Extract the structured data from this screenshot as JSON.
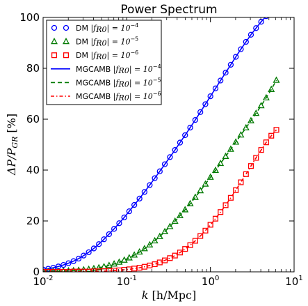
{
  "chart_data": {
    "type": "line",
    "title": "Power Spectrum",
    "xlabel_parts": {
      "var": "k",
      "unit": "[h/Mpc]"
    },
    "ylabel_parts": {
      "var": "ΔP/P",
      "sub": "GR",
      "unit": "[%]"
    },
    "xscale": "log",
    "xlim": [
      0.01,
      10
    ],
    "ylim": [
      0,
      100
    ],
    "x_ticks": [
      {
        "value": 0.01,
        "base": "10",
        "exp": "-2"
      },
      {
        "value": 0.1,
        "base": "10",
        "exp": "-1"
      },
      {
        "value": 1,
        "base": "10",
        "exp": "0"
      },
      {
        "value": 10,
        "base": "10",
        "exp": "1"
      }
    ],
    "y_ticks": [
      0,
      20,
      40,
      60,
      80,
      100
    ],
    "legend_position": "top-left",
    "series": [
      {
        "name": "DM",
        "label_math": "|f",
        "label_sub": "R0",
        "label_exp_pre": "| = 10",
        "label_exp": "−4",
        "kind": "marker",
        "marker": "circle",
        "color": "#0000ff",
        "key": "s4"
      },
      {
        "name": "DM",
        "label_math": "|f",
        "label_sub": "R0",
        "label_exp_pre": "| = 10",
        "label_exp": "−5",
        "kind": "marker",
        "marker": "triangle",
        "color": "#007a00",
        "key": "s5"
      },
      {
        "name": "DM",
        "label_math": "|f",
        "label_sub": "R0",
        "label_exp_pre": "| = 10",
        "label_exp": "−6",
        "kind": "marker",
        "marker": "square",
        "color": "#ff0000",
        "key": "s6"
      },
      {
        "name": "MGCAMB",
        "label_math": "|f",
        "label_sub": "R0",
        "label_exp_pre": "| = 10",
        "label_exp": "−4",
        "kind": "line",
        "dash": "solid",
        "color": "#0000ff",
        "key": "s4"
      },
      {
        "name": "MGCAMB",
        "label_math": "|f",
        "label_sub": "R0",
        "label_exp_pre": "| = 10",
        "label_exp": "−5",
        "kind": "line",
        "dash": "dashed",
        "color": "#007a00",
        "key": "s5"
      },
      {
        "name": "MGCAMB",
        "label_math": "|f",
        "label_sub": "R0",
        "label_exp_pre": "| = 10",
        "label_exp": "−6",
        "kind": "line",
        "dash": "dashdot",
        "color": "#ff0000",
        "key": "s6"
      }
    ],
    "curves": {
      "s4": {
        "x": [
          0.01,
          0.0115,
          0.0132,
          0.0152,
          0.0175,
          0.0201,
          0.0231,
          0.0266,
          0.0305,
          0.0351,
          0.0404,
          0.0464,
          0.0534,
          0.0614,
          0.0706,
          0.0812,
          0.0933,
          0.107,
          0.123,
          0.142,
          0.163,
          0.188,
          0.216,
          0.248,
          0.285,
          0.328,
          0.377,
          0.433,
          0.498,
          0.573,
          0.659,
          0.758,
          0.871,
          1.0,
          1.15,
          1.32,
          1.52,
          1.75,
          2.01,
          2.31,
          2.66,
          3.05,
          3.51,
          4.04,
          4.64,
          5.34,
          6.14
        ],
        "y": [
          0.9,
          1.2,
          1.6,
          2.1,
          2.7,
          3.4,
          4.2,
          5.2,
          6.4,
          7.7,
          9.2,
          10.9,
          12.8,
          14.8,
          16.9,
          19.1,
          21.4,
          23.8,
          26.3,
          28.8,
          31.4,
          34.1,
          36.8,
          39.5,
          42.3,
          45.1,
          47.9,
          50.8,
          53.7,
          56.7,
          59.7,
          62.8,
          65.9,
          69.0,
          72.1,
          75.2,
          78.3,
          81.4,
          84.5,
          87.5,
          90.4,
          93.2,
          95.8,
          98.3,
          100.5,
          102.5,
          104.3
        ]
      },
      "s5": {
        "x": [
          0.01,
          0.0115,
          0.0132,
          0.0152,
          0.0175,
          0.0201,
          0.0231,
          0.0266,
          0.0305,
          0.0351,
          0.0404,
          0.0464,
          0.0534,
          0.0614,
          0.0706,
          0.0812,
          0.0933,
          0.107,
          0.123,
          0.142,
          0.163,
          0.188,
          0.216,
          0.248,
          0.285,
          0.328,
          0.377,
          0.433,
          0.498,
          0.573,
          0.659,
          0.758,
          0.871,
          1.0,
          1.15,
          1.32,
          1.52,
          1.75,
          2.01,
          2.31,
          2.66,
          3.05,
          3.51,
          4.04,
          4.64,
          5.34,
          6.14
        ],
        "y": [
          0.1,
          0.1,
          0.2,
          0.2,
          0.3,
          0.4,
          0.5,
          0.6,
          0.8,
          1.0,
          1.3,
          1.6,
          2.0,
          2.5,
          3.1,
          3.8,
          4.6,
          5.5,
          6.6,
          7.8,
          9.1,
          10.6,
          12.2,
          13.9,
          15.8,
          17.8,
          19.9,
          22.1,
          24.4,
          26.8,
          29.3,
          31.9,
          34.5,
          37.2,
          39.9,
          42.6,
          45.4,
          48.2,
          51.0,
          53.8,
          56.6,
          59.4,
          62.3,
          65.3,
          68.4,
          71.7,
          75.3
        ]
      },
      "s6": {
        "x": [
          0.01,
          0.0115,
          0.0132,
          0.0152,
          0.0175,
          0.0201,
          0.0231,
          0.0266,
          0.0305,
          0.0351,
          0.0404,
          0.0464,
          0.0534,
          0.0614,
          0.0706,
          0.0812,
          0.0933,
          0.107,
          0.123,
          0.142,
          0.163,
          0.188,
          0.216,
          0.248,
          0.285,
          0.328,
          0.377,
          0.433,
          0.498,
          0.573,
          0.659,
          0.758,
          0.871,
          1.0,
          1.15,
          1.32,
          1.52,
          1.75,
          2.01,
          2.31,
          2.66,
          3.05,
          3.51,
          4.04,
          4.64,
          5.34,
          6.14
        ],
        "y": [
          0.0,
          0.0,
          0.0,
          0.0,
          0.0,
          0.0,
          0.1,
          0.1,
          0.1,
          0.1,
          0.2,
          0.2,
          0.3,
          0.4,
          0.5,
          0.6,
          0.8,
          1.0,
          1.3,
          1.6,
          2.0,
          2.5,
          3.0,
          3.7,
          4.5,
          5.4,
          6.4,
          7.6,
          9.0,
          10.5,
          12.2,
          14.1,
          16.2,
          18.5,
          20.9,
          23.5,
          26.2,
          29.1,
          32.1,
          35.2,
          38.4,
          41.6,
          44.8,
          47.9,
          50.9,
          53.5,
          55.8
        ]
      }
    }
  }
}
